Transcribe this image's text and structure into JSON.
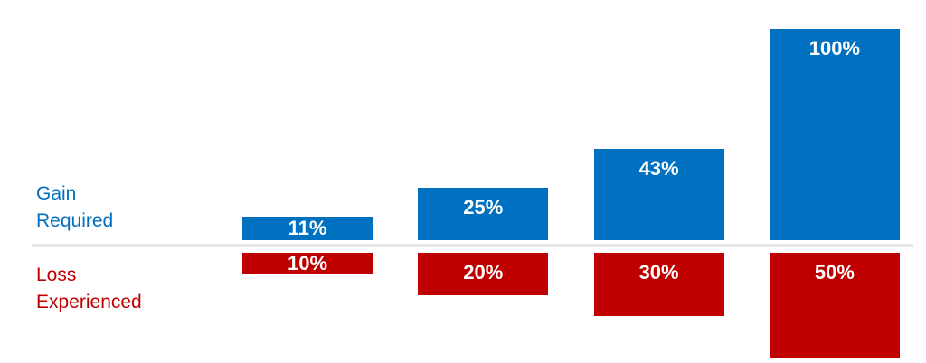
{
  "chart_data": {
    "type": "diverging-bar",
    "series": [
      {
        "name": "Gain Required",
        "color": "#0070c0",
        "values": [
          11,
          25,
          43,
          100
        ],
        "value_labels": [
          "11%",
          "25%",
          "43%",
          "100%"
        ]
      },
      {
        "name": "Loss Experienced",
        "color": "#c00000",
        "values": [
          10,
          20,
          30,
          50
        ],
        "value_labels": [
          "10%",
          "20%",
          "30%",
          "50%"
        ]
      }
    ]
  }
}
